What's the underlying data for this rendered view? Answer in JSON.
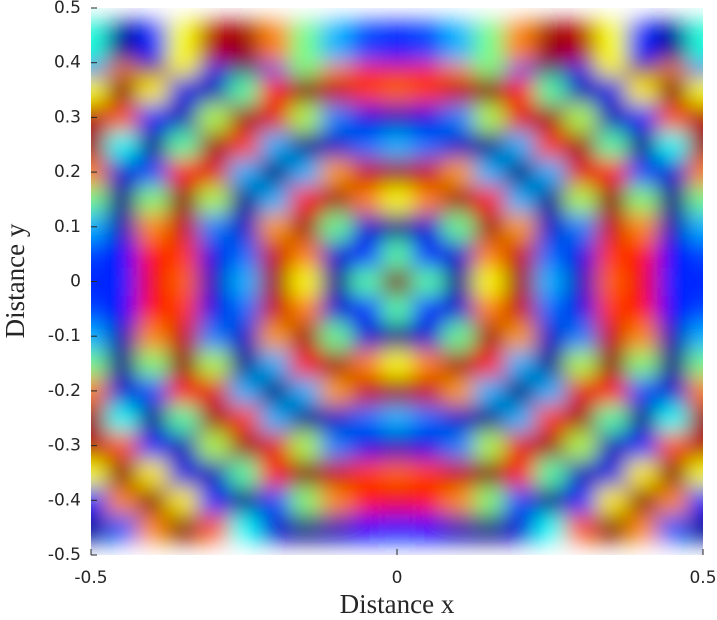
{
  "chart_data": {
    "type": "heatmap",
    "colormap": "jet",
    "xlabel": "Distance x",
    "ylabel": "Distance y",
    "xlim": [
      -0.5,
      0.5
    ],
    "ylim": [
      -0.5,
      0.5
    ],
    "xticks": [
      -0.5,
      0,
      0.5
    ],
    "yticks": [
      -0.5,
      -0.4,
      -0.3,
      -0.2,
      -0.1,
      0,
      0.1,
      0.2,
      0.3,
      0.4,
      0.5
    ],
    "x": [
      -0.5,
      -0.45,
      -0.4,
      -0.35,
      -0.3,
      -0.25,
      -0.2,
      -0.15,
      -0.1,
      -0.05,
      0,
      0.05,
      0.1,
      0.15,
      0.2,
      0.25,
      0.3,
      0.35,
      0.4,
      0.45,
      0.5
    ],
    "y": [
      -0.5,
      -0.45,
      -0.4,
      -0.35,
      -0.3,
      -0.25,
      -0.2,
      -0.15,
      -0.1,
      -0.05,
      0,
      0.05,
      0.1,
      0.15,
      0.2,
      0.25,
      0.3,
      0.35,
      0.4,
      0.45,
      0.5
    ],
    "z": [
      [
        0.41,
        0.02,
        0.16,
        0.62,
        0.95,
        0.97,
        0.75,
        0.49,
        0.3,
        0.19,
        0.16,
        0.19,
        0.3,
        0.49,
        0.75,
        0.97,
        0.95,
        0.62,
        0.16,
        0.02,
        0.41
      ],
      [
        0.02,
        0.21,
        0.74,
        1,
        0.79,
        0.38,
        0.08,
        0,
        0.05,
        0.13,
        0.16,
        0.13,
        0.05,
        0,
        0.08,
        0.38,
        0.79,
        1,
        0.74,
        0.21,
        0.02
      ],
      [
        0.16,
        0.74,
        0.99,
        0.64,
        0.16,
        0,
        0.2,
        0.51,
        0.74,
        0.86,
        0.89,
        0.86,
        0.74,
        0.51,
        0.2,
        0,
        0.16,
        0.64,
        0.99,
        0.74,
        0.16
      ],
      [
        0.62,
        1,
        0.64,
        0.1,
        0.05,
        0.46,
        0.86,
        1,
        0.93,
        0.82,
        0.78,
        0.82,
        0.93,
        1,
        0.86,
        0.46,
        0.05,
        0.1,
        0.64,
        1,
        0.62
      ],
      [
        0.95,
        0.79,
        0.16,
        0.05,
        0.55,
        0.97,
        0.9,
        0.55,
        0.25,
        0.1,
        0.06,
        0.1,
        0.25,
        0.55,
        0.9,
        0.97,
        0.55,
        0.05,
        0.16,
        0.79,
        0.95
      ],
      [
        0.97,
        0.38,
        0,
        0.46,
        0.97,
        0.82,
        0.3,
        0.01,
        0.07,
        0.23,
        0.3,
        0.23,
        0.07,
        0.01,
        0.3,
        0.82,
        0.97,
        0.46,
        0,
        0.38,
        0.97
      ],
      [
        0.75,
        0.08,
        0.2,
        0.86,
        0.9,
        0.3,
        0,
        0.3,
        0.72,
        0.93,
        0.97,
        0.93,
        0.72,
        0.3,
        0,
        0.3,
        0.9,
        0.86,
        0.2,
        0.08,
        0.75
      ],
      [
        0.49,
        0,
        0.51,
        1,
        0.55,
        0.01,
        0.3,
        0.87,
        0.97,
        0.75,
        0.62,
        0.75,
        0.97,
        0.87,
        0.3,
        0.01,
        0.55,
        1,
        0.51,
        0,
        0.49
      ],
      [
        0.3,
        0.05,
        0.74,
        0.93,
        0.25,
        0.07,
        0.72,
        0.97,
        0.48,
        0.08,
        0.01,
        0.08,
        0.48,
        0.97,
        0.72,
        0.07,
        0.25,
        0.93,
        0.74,
        0.05,
        0.3
      ],
      [
        0.19,
        0.13,
        0.86,
        0.82,
        0.1,
        0.23,
        0.93,
        0.75,
        0.08,
        0.15,
        0.46,
        0.15,
        0.08,
        0.75,
        0.93,
        0.23,
        0.1,
        0.82,
        0.86,
        0.13,
        0.19
      ],
      [
        0.16,
        0.16,
        0.89,
        0.78,
        0.06,
        0.3,
        0.97,
        0.62,
        0.01,
        0.46,
        1,
        0.46,
        0.01,
        0.62,
        0.97,
        0.3,
        0.06,
        0.78,
        0.89,
        0.16,
        0.16
      ],
      [
        0.19,
        0.13,
        0.86,
        0.82,
        0.1,
        0.23,
        0.93,
        0.75,
        0.08,
        0.15,
        0.46,
        0.15,
        0.08,
        0.75,
        0.93,
        0.23,
        0.1,
        0.82,
        0.86,
        0.13,
        0.19
      ],
      [
        0.3,
        0.05,
        0.74,
        0.93,
        0.25,
        0.07,
        0.72,
        0.97,
        0.48,
        0.08,
        0.01,
        0.08,
        0.48,
        0.97,
        0.72,
        0.07,
        0.25,
        0.93,
        0.74,
        0.05,
        0.3
      ],
      [
        0.49,
        0,
        0.51,
        1,
        0.55,
        0.01,
        0.3,
        0.87,
        0.97,
        0.75,
        0.62,
        0.75,
        0.97,
        0.87,
        0.3,
        0.01,
        0.55,
        1,
        0.51,
        0,
        0.49
      ],
      [
        0.75,
        0.08,
        0.2,
        0.86,
        0.9,
        0.3,
        0,
        0.3,
        0.72,
        0.93,
        0.97,
        0.93,
        0.72,
        0.3,
        0,
        0.3,
        0.9,
        0.86,
        0.2,
        0.08,
        0.75
      ],
      [
        0.97,
        0.38,
        0,
        0.46,
        0.97,
        0.82,
        0.3,
        0.01,
        0.07,
        0.23,
        0.3,
        0.23,
        0.07,
        0.01,
        0.3,
        0.82,
        0.97,
        0.46,
        0,
        0.38,
        0.97
      ],
      [
        0.95,
        0.79,
        0.16,
        0.05,
        0.55,
        0.97,
        0.9,
        0.55,
        0.25,
        0.1,
        0.06,
        0.1,
        0.25,
        0.55,
        0.9,
        0.97,
        0.55,
        0.05,
        0.16,
        0.79,
        0.95
      ],
      [
        0.62,
        1,
        0.64,
        0.1,
        0.05,
        0.46,
        0.86,
        1,
        0.93,
        0.82,
        0.78,
        0.82,
        0.93,
        1,
        0.86,
        0.46,
        0.05,
        0.1,
        0.64,
        1,
        0.62
      ],
      [
        0.16,
        0.74,
        0.99,
        0.64,
        0.16,
        0,
        0.2,
        0.51,
        0.74,
        0.86,
        0.89,
        0.86,
        0.74,
        0.51,
        0.2,
        0,
        0.16,
        0.64,
        0.99,
        0.74,
        0.16
      ],
      [
        0.02,
        0.21,
        0.74,
        1,
        0.79,
        0.38,
        0.08,
        0,
        0.05,
        0.13,
        0.16,
        0.13,
        0.05,
        0,
        0.08,
        0.38,
        0.79,
        1,
        0.74,
        0.21,
        0.02
      ],
      [
        0.41,
        0.02,
        0.16,
        0.62,
        0.95,
        0.97,
        0.75,
        0.49,
        0.3,
        0.19,
        0.16,
        0.19,
        0.3,
        0.49,
        0.75,
        0.97,
        0.95,
        0.62,
        0.16,
        0.02,
        0.41
      ]
    ]
  }
}
